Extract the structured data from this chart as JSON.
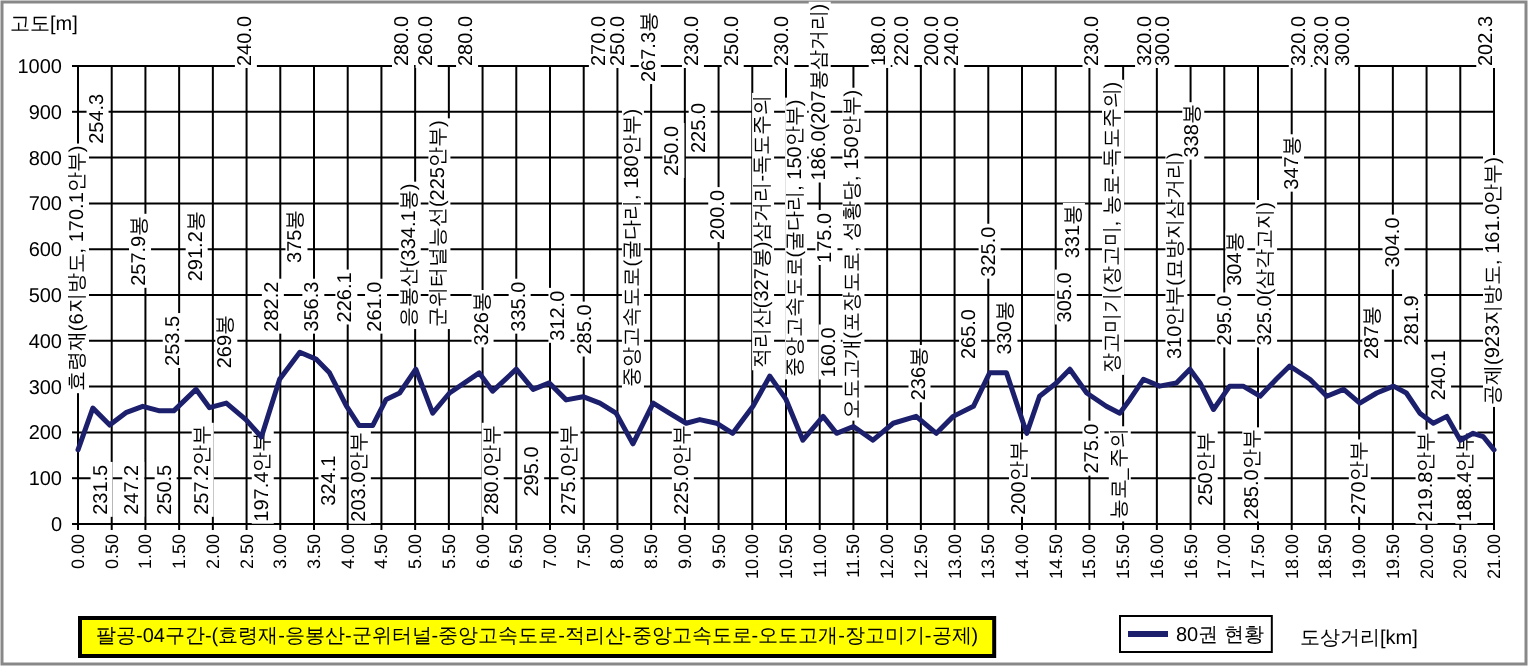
{
  "chart_data": {
    "type": "line",
    "title": "팔공-04구간-(효령재-응봉산-군위터널-중앙고속도로-적리산-중앙고속도로-오도고개-장고미기-공제)",
    "xlabel": "도상거리[km]",
    "ylabel": "고도[m]",
    "legend": "bottom",
    "grid": true,
    "xlim": [
      0,
      21
    ],
    "ylim": [
      0,
      1000
    ],
    "yticks": [
      0,
      100,
      200,
      300,
      400,
      500,
      600,
      700,
      800,
      900,
      1000
    ],
    "xticks": [
      {
        "value": 0,
        "label": "0.00"
      },
      {
        "value": 0.5,
        "label": "0.50"
      },
      {
        "value": 1,
        "label": "1.00"
      },
      {
        "value": 1.5,
        "label": "1.50"
      },
      {
        "value": 2,
        "label": "2.00"
      },
      {
        "value": 2.5,
        "label": "2.50"
      },
      {
        "value": 3,
        "label": "3.00"
      },
      {
        "value": 3.5,
        "label": "3.50"
      },
      {
        "value": 4,
        "label": "4.00"
      },
      {
        "value": 4.5,
        "label": "4.50"
      },
      {
        "value": 5,
        "label": "5.00"
      },
      {
        "value": 5.5,
        "label": "5.50"
      },
      {
        "value": 6,
        "label": "6.00"
      },
      {
        "value": 6.5,
        "label": "6.50"
      },
      {
        "value": 7,
        "label": "7.00"
      },
      {
        "value": 7.5,
        "label": "7.50"
      },
      {
        "value": 8,
        "label": "8.00"
      },
      {
        "value": 8.5,
        "label": "8.50"
      },
      {
        "value": 9,
        "label": "9.00"
      },
      {
        "value": 9.5,
        "label": "9.50"
      },
      {
        "value": 10,
        "label": "10.00"
      },
      {
        "value": 10.5,
        "label": "10.50"
      },
      {
        "value": 11,
        "label": "11.00"
      },
      {
        "value": 11.5,
        "label": "11.50"
      },
      {
        "value": 12,
        "label": "12.00"
      },
      {
        "value": 12.5,
        "label": "12.50"
      },
      {
        "value": 13,
        "label": "13.00"
      },
      {
        "value": 13.5,
        "label": "13.50"
      },
      {
        "value": 14,
        "label": "14.00"
      },
      {
        "value": 14.5,
        "label": "14.50"
      },
      {
        "value": 15,
        "label": "15.00"
      },
      {
        "value": 15.5,
        "label": "15.50"
      },
      {
        "value": 16,
        "label": "16.00"
      },
      {
        "value": 16.5,
        "label": "16.50"
      },
      {
        "value": 17,
        "label": "17.00"
      },
      {
        "value": 17.5,
        "label": "17.50"
      },
      {
        "value": 18,
        "label": "18.00"
      },
      {
        "value": 18.5,
        "label": "18.50"
      },
      {
        "value": 19,
        "label": "19.00"
      },
      {
        "value": 19.5,
        "label": "19.50"
      },
      {
        "value": 20,
        "label": "20.00"
      },
      {
        "value": 20.5,
        "label": "20.50"
      },
      {
        "value": 21,
        "label": "21.00"
      }
    ],
    "x": [
      0,
      0.22,
      0.47,
      0.71,
      0.96,
      1.21,
      1.42,
      1.75,
      1.95,
      2.2,
      2.49,
      2.72,
      2.99,
      3.29,
      3.53,
      3.73,
      3.98,
      4.17,
      4.37,
      4.57,
      4.77,
      5.01,
      5.26,
      5.51,
      5.95,
      6.15,
      6.5,
      6.75,
      6.99,
      7.24,
      7.49,
      7.74,
      7.98,
      8.23,
      8.53,
      8.77,
      9.02,
      9.22,
      9.47,
      9.71,
      10.01,
      10.26,
      10.5,
      10.75,
      11.05,
      11.25,
      11.5,
      11.79,
      12.09,
      12.43,
      12.73,
      12.98,
      13.28,
      13.52,
      13.77,
      14.07,
      14.26,
      14.51,
      14.71,
      14.96,
      15.25,
      15.45,
      15.6,
      15.8,
      16.04,
      16.29,
      16.49,
      16.64,
      16.84,
      17.08,
      17.28,
      17.53,
      17.77,
      17.97,
      18.27,
      18.52,
      18.77,
      19.01,
      19.26,
      19.51,
      19.7,
      19.9,
      20.1,
      20.3,
      20.5,
      20.69,
      20.84,
      21
    ],
    "series": [
      {
        "name": "80권 현황",
        "color": "#1c1f6b",
        "values": [
          162,
          253,
          216,
          243,
          257,
          247,
          247,
          294,
          254,
          264,
          228,
          190,
          316,
          375,
          360,
          330,
          258,
          215,
          215,
          272,
          286,
          338,
          242,
          286,
          330,
          290,
          338,
          294,
          308,
          271,
          278,
          264,
          242,
          175,
          264,
          242,
          220,
          228,
          220,
          198,
          257,
          323,
          272,
          183,
          235,
          198,
          213,
          183,
          220,
          235,
          198,
          235,
          257,
          330,
          330,
          198,
          279,
          308,
          338,
          286,
          257,
          242,
          272,
          316,
          301,
          308,
          338,
          308,
          250,
          301,
          301,
          279,
          316,
          345,
          316,
          279,
          294,
          264,
          286,
          301,
          286,
          242,
          220,
          235,
          183,
          198,
          191,
          162
        ]
      }
    ],
    "annotations": [
      "효령재(6지방도, 170.1안부)",
      "254.3",
      "231.5",
      "247.2",
      "257.9봉",
      "250.5",
      "253.5",
      "291.2봉",
      "257.2안부",
      "269봉",
      "240.0",
      "197.4안부",
      "282.2",
      "375봉",
      "356.3",
      "324.1",
      "226.1",
      "203.0안부",
      "261.0",
      "280.0",
      "응봉산(334.1봉)",
      "260.0",
      "군위터널능선(225안부)",
      "280.0",
      "326봉",
      "280.0안부",
      "335.0",
      "295.0",
      "312.0",
      "275.0안부",
      "285.0",
      "270.0",
      "250.0",
      "중앙고속도로(굴다리, 180안부)",
      "267.3봉",
      "250.0",
      "225.0안부",
      "230.0",
      "225.0",
      "200.0",
      "250.0",
      "적리산(327봉)삼거리-독도주의",
      "230.0",
      "중앙고속도로(굴다리, 150안부)",
      "186.0(207봉삼거리)",
      "175.0",
      "160.0",
      "오도고개(포장도로, 성황당, 150안부)",
      "180.0",
      "220.0",
      "236봉",
      "200.0",
      "240.0",
      "265.0",
      "325.0",
      "330봉",
      "200안부",
      "305.0",
      "331봉",
      "230.0",
      "275.0",
      "장고미기(장고미, 농로-독도주의)",
      "농로_주의",
      "320.0",
      "300.0",
      "310안부(묘방지삼거리)",
      "338봉",
      "250안부",
      "295.0",
      "304봉",
      "285.0안부",
      "325.0(삼각고지)",
      "347봉",
      "320.0",
      "230.0",
      "300.0",
      "270안부",
      "287봉",
      "304.0",
      "281.9",
      "219.8안부",
      "240.1",
      "188.4안부",
      "202.3",
      "공제(923지방도, 161.0안부)"
    ]
  }
}
